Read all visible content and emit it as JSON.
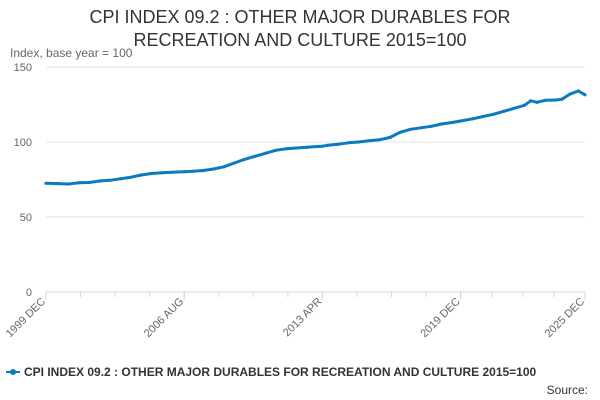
{
  "chart_data": {
    "type": "line",
    "title": "CPI INDEX 09.2 : OTHER MAJOR DURABLES FOR\nRECREATION AND CULTURE 2015=100",
    "ylabel": "Index, base year = 100",
    "xlabel": "",
    "ylim": [
      0,
      150
    ],
    "yticks": [
      0,
      50,
      100,
      150
    ],
    "grid": true,
    "legend_position": "bottom",
    "xticks": [
      {
        "label": "1999 DEC",
        "x": 1999.917
      },
      {
        "label": "2006 AUG",
        "x": 2006.583
      },
      {
        "label": "2013 APR",
        "x": 2013.25
      },
      {
        "label": "2019 DEC",
        "x": 2019.917
      },
      {
        "label": "2025 DEC",
        "x": 2025.917
      }
    ],
    "xlim": [
      1999.917,
      2025.917
    ],
    "series": [
      {
        "name": "CPI INDEX 09.2 : OTHER MAJOR DURABLES FOR RECREATION AND CULTURE 2015=100",
        "color": "#0a7bbf",
        "x": [
          1999.917,
          2000.5,
          2001.0,
          2001.5,
          2002.0,
          2002.5,
          2003.0,
          2003.5,
          2004.0,
          2004.5,
          2005.0,
          2005.5,
          2006.0,
          2006.2,
          2006.583,
          2007.0,
          2007.5,
          2008.0,
          2008.5,
          2009.0,
          2009.5,
          2010.0,
          2010.5,
          2011.0,
          2011.5,
          2012.0,
          2012.5,
          2013.0,
          2013.25,
          2013.5,
          2014.0,
          2014.5,
          2015.0,
          2015.5,
          2016.0,
          2016.5,
          2017.0,
          2017.5,
          2018.0,
          2018.5,
          2019.0,
          2019.5,
          2019.917,
          2020.5,
          2021.0,
          2021.5,
          2022.0,
          2022.5,
          2023.0,
          2023.3,
          2023.6,
          2024.0,
          2024.5,
          2024.8,
          2025.2,
          2025.6,
          2025.917
        ],
        "values": [
          72.5,
          72.3,
          72.0,
          72.8,
          73.0,
          74.0,
          74.5,
          75.5,
          76.5,
          78.0,
          79.0,
          79.5,
          79.8,
          80.0,
          80.2,
          80.5,
          81.0,
          82.0,
          83.5,
          86.0,
          88.5,
          90.5,
          92.5,
          94.5,
          95.5,
          96.0,
          96.5,
          97.0,
          97.2,
          97.8,
          98.5,
          99.5,
          100.0,
          100.8,
          101.5,
          103.0,
          106.5,
          108.5,
          109.5,
          110.5,
          112.0,
          113.0,
          114.0,
          115.5,
          117.0,
          118.5,
          120.5,
          122.5,
          124.5,
          127.5,
          126.5,
          127.8,
          128.0,
          128.5,
          132.0,
          134.0,
          131.5
        ]
      }
    ]
  },
  "legend": {
    "label": "CPI INDEX 09.2 : OTHER MAJOR DURABLES FOR RECREATION AND CULTURE 2015=100"
  },
  "footer": {
    "source_label": "Source:"
  }
}
